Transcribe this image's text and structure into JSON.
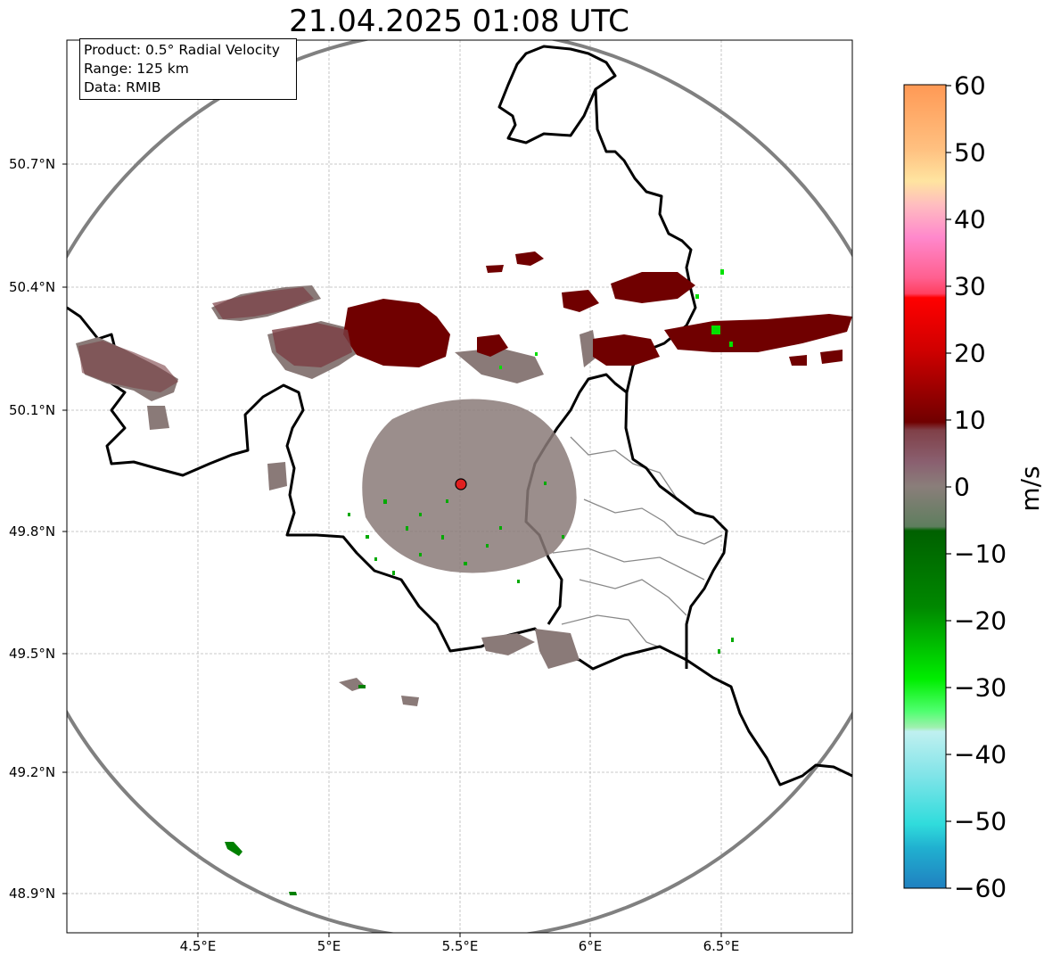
{
  "title": "21.04.2025 01:08 UTC",
  "info": {
    "product": "Product: 0.5° Radial Velocity",
    "range": "Range: 125 km",
    "data": "Data: RMIB"
  },
  "lat_labels": [
    "50.7°N",
    "50.4°N",
    "50.1°N",
    "49.8°N",
    "49.5°N",
    "49.2°N",
    "48.9°N"
  ],
  "lon_labels": [
    "4.5°E",
    "5°E",
    "5.5°E",
    "6°E",
    "6.5°E"
  ],
  "colorbar": {
    "label": "m/s",
    "ticks": [
      "60",
      "50",
      "40",
      "30",
      "20",
      "10",
      "0",
      "−10",
      "−20",
      "−30",
      "−40",
      "−50",
      "−60"
    ],
    "vmin": -60,
    "vmax": 60
  },
  "colors": {
    "grid": "#b0b0b0",
    "range_ring": "#808080",
    "border": "#000000",
    "radar_site": "#e02020",
    "velocity_inbound_strong": "#00cc00",
    "velocity_near_zero": "#8a7a78",
    "velocity_outbound": "#7a0000"
  }
}
